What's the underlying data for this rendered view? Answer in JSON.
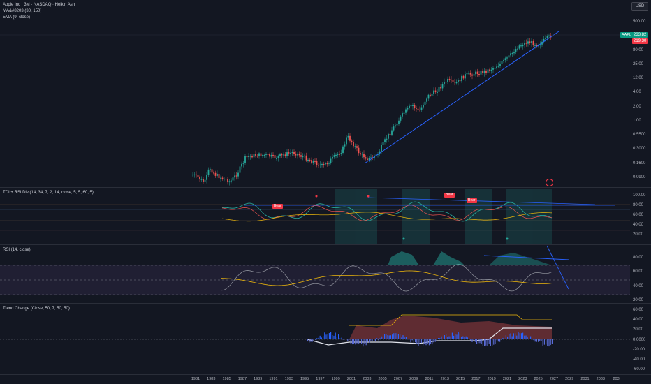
{
  "legend": {
    "title": "Apple Inc · 3M · NASDAQ · Heikin Ashi",
    "ma_label": "MA&#8203;(30, 150)",
    "ema_label": "EMA (9, close)"
  },
  "currency_button": "USD",
  "price_axis": [
    "500.00",
    "200.00",
    "80.00",
    "25.00",
    "12.00",
    "4.00",
    "2.00",
    "1.00",
    "0.5500",
    "0.3000",
    "0.1600",
    "0.0900"
  ],
  "last_price": "233.82",
  "prev_price": "219.30",
  "ticker_tag": "AAPL",
  "pane_tdi": {
    "title": "TDI + RSI Div (14, 34, 7, 2, 14, close, 5, 5, 60, 5)",
    "axis": [
      "100.00",
      "80.00",
      "60.00",
      "40.00",
      "20.00"
    ],
    "bear_labels": [
      "Bear",
      "Bear",
      "Bear"
    ]
  },
  "pane_rsi": {
    "title": "RSI (14, close)",
    "axis": [
      "80.00",
      "60.00",
      "40.00",
      "20.00"
    ]
  },
  "pane_trend": {
    "title": "Trend Change (Close, 50, 7, 50, 50)",
    "axis": [
      "60.00",
      "40.00",
      "20.00",
      "0.0000",
      "-20.00",
      "-40.00",
      "-60.00"
    ]
  },
  "time_axis": [
    "1981",
    "1983",
    "1985",
    "1987",
    "1989",
    "1991",
    "1993",
    "1995",
    "1997",
    "1999",
    "2001",
    "2003",
    "2005",
    "2007",
    "2009",
    "2011",
    "2013",
    "2015",
    "2017",
    "2019",
    "2021",
    "2023",
    "2025",
    "2027",
    "2029",
    "2031",
    "2033",
    "203"
  ],
  "colors": {
    "up": "#26a69a",
    "down": "#ef5350",
    "trendline": "#2962ff",
    "ema": "#f0b90b"
  }
}
